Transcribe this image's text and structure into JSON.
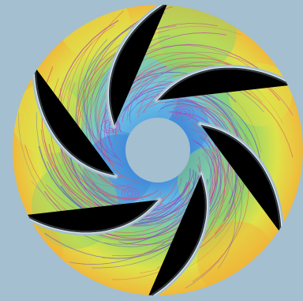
{
  "colors": {
    "background": "#a4bfd0",
    "hub": "#a4bfd0",
    "blade_gap": "#a4bfd0",
    "velocity_low": "#3f86d8",
    "velocity_low_mid": "#6ec6e8",
    "velocity_mid": "#8ed36a",
    "velocity_high_mid": "#dfe24a",
    "velocity_high": "#f2b238",
    "streamline_primary": "#c040b0",
    "streamline_secondary": "#6060c8",
    "streamline_warm": "#e05a5a"
  },
  "figure": {
    "subject": "impeller",
    "blade_count": 6
  }
}
